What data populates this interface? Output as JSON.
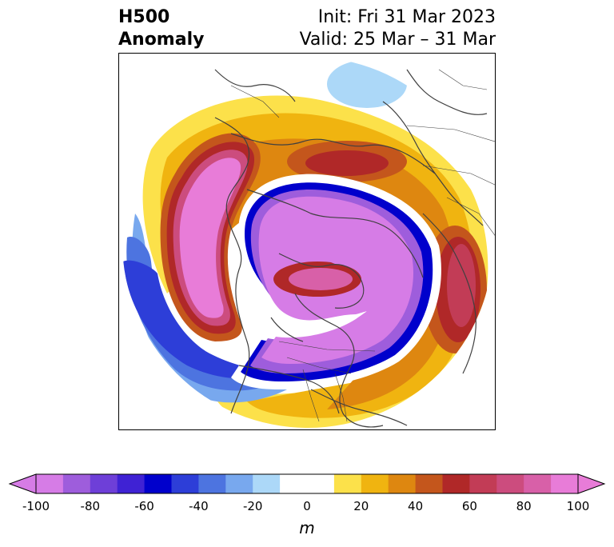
{
  "title": {
    "variable": "H500",
    "type": "Anomaly",
    "init": "Init: Fri 31 Mar 2023",
    "valid": "Valid: 25 Mar – 31 Mar"
  },
  "colorbar": {
    "units": "m",
    "min": -100,
    "max": 100,
    "step": 10,
    "ticks": [
      "-100",
      "-80",
      "-60",
      "-40",
      "-20",
      "0",
      "20",
      "40",
      "60",
      "80",
      "100"
    ],
    "colors": [
      "#d67ce6",
      "#9e5ddc",
      "#6e3fd8",
      "#3f22d4",
      "#0000cc",
      "#2d3ed8",
      "#4d74e0",
      "#78a8ee",
      "#acd8f8",
      "#ffffff",
      "#ffffff",
      "#fce14a",
      "#f0b410",
      "#de8710",
      "#c4561c",
      "#b02828",
      "#c23c56",
      "#cc4c7e",
      "#d860a8",
      "#e87cd8"
    ],
    "extend": "both"
  },
  "map": {
    "projection": "north-polar-stereographic",
    "features": [
      "coastlines",
      "country-borders",
      "state-borders"
    ]
  }
}
